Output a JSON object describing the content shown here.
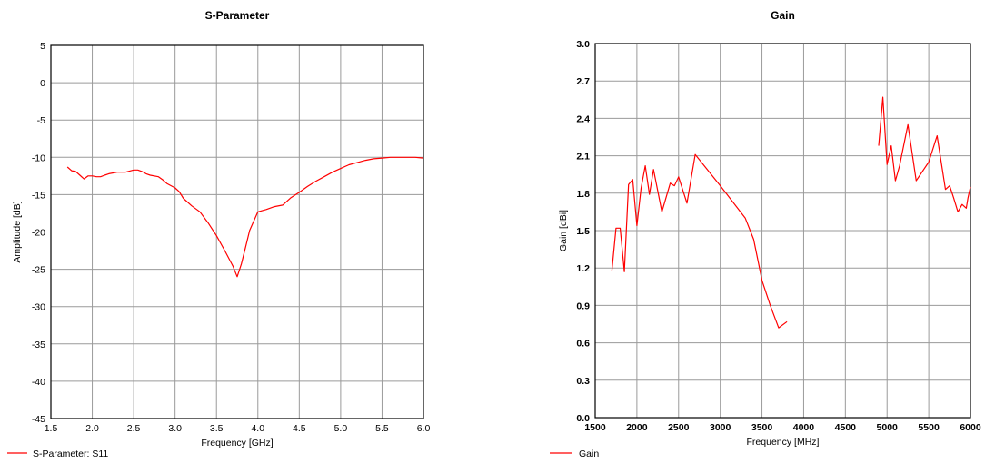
{
  "chart_data": [
    {
      "type": "line",
      "title": "S-Parameter",
      "xlabel": "Frequency [GHz]",
      "ylabel": "Amplitude [dB]",
      "xlim": [
        1.5,
        6.0
      ],
      "ylim": [
        -45,
        5
      ],
      "xticks": [
        "1.5",
        "2.0",
        "2.5",
        "3.0",
        "3.5",
        "4.0",
        "4.5",
        "5.0",
        "5.5",
        "6.0"
      ],
      "xtick_values": [
        1.5,
        2.0,
        2.5,
        3.0,
        3.5,
        4.0,
        4.5,
        5.0,
        5.5,
        6.0
      ],
      "yticks": [
        "5",
        "0",
        "-5",
        "-10",
        "-15",
        "-20",
        "-25",
        "-30",
        "-35",
        "-40",
        "-45"
      ],
      "ytick_values": [
        5,
        0,
        -5,
        -10,
        -15,
        -20,
        -25,
        -30,
        -35,
        -40,
        -45
      ],
      "grid": true,
      "legend_position": "bottom-left",
      "series": [
        {
          "name": "S-Parameter: S11",
          "color": "#ff0000",
          "x": [
            1.7,
            1.75,
            1.8,
            1.85,
            1.9,
            1.95,
            2.0,
            2.05,
            2.1,
            2.15,
            2.2,
            2.3,
            2.4,
            2.5,
            2.55,
            2.6,
            2.65,
            2.7,
            2.8,
            2.85,
            2.9,
            3.0,
            3.05,
            3.1,
            3.2,
            3.3,
            3.4,
            3.5,
            3.6,
            3.7,
            3.75,
            3.8,
            3.85,
            3.9,
            4.0,
            4.1,
            4.2,
            4.3,
            4.4,
            4.5,
            4.6,
            4.7,
            4.8,
            4.9,
            5.0,
            5.1,
            5.2,
            5.3,
            5.4,
            5.5,
            5.6,
            5.7,
            5.8,
            5.9,
            6.0
          ],
          "values": [
            -11.3,
            -11.8,
            -11.9,
            -12.4,
            -12.9,
            -12.5,
            -12.5,
            -12.6,
            -12.6,
            -12.4,
            -12.2,
            -12.0,
            -12.0,
            -11.7,
            -11.7,
            -11.9,
            -12.2,
            -12.4,
            -12.6,
            -13.0,
            -13.5,
            -14.1,
            -14.6,
            -15.5,
            -16.5,
            -17.3,
            -18.8,
            -20.5,
            -22.5,
            -24.6,
            -26.0,
            -24.3,
            -22.1,
            -19.8,
            -17.3,
            -17.0,
            -16.6,
            -16.4,
            -15.4,
            -14.7,
            -13.9,
            -13.2,
            -12.6,
            -12.0,
            -11.5,
            -11.0,
            -10.7,
            -10.4,
            -10.2,
            -10.1,
            -10.0,
            -10.0,
            -10.0,
            -10.0,
            -10.1
          ]
        }
      ]
    },
    {
      "type": "line",
      "title": "Gain",
      "xlabel": "Frequency [MHz]",
      "ylabel": "Gain [dBi]",
      "xlim": [
        1500,
        6000
      ],
      "ylim": [
        0.0,
        3.0
      ],
      "xticks": [
        "1500",
        "2000",
        "2500",
        "3000",
        "3500",
        "4000",
        "4500",
        "5000",
        "5500",
        "6000"
      ],
      "xtick_values": [
        1500,
        2000,
        2500,
        3000,
        3500,
        4000,
        4500,
        5000,
        5500,
        6000
      ],
      "yticks": [
        "3.0",
        "2.7",
        "2.4",
        "2.1",
        "1.8",
        "1.5",
        "1.2",
        "0.9",
        "0.6",
        "0.3",
        "0.0"
      ],
      "ytick_values": [
        3.0,
        2.7,
        2.4,
        2.1,
        1.8,
        1.5,
        1.2,
        0.9,
        0.6,
        0.3,
        0.0
      ],
      "grid": true,
      "legend_position": "bottom-left",
      "series": [
        {
          "name": "Gain",
          "color": "#ff0000",
          "segments": [
            {
              "x": [
                1700,
                1750,
                1800,
                1850,
                1900,
                1950,
                2000,
                2050,
                2100,
                2150,
                2200,
                2300,
                2400,
                2450,
                2500,
                2600,
                2700,
                3000,
                3300,
                3400,
                3500,
                3600,
                3700,
                3800
              ],
              "values": [
                1.18,
                1.52,
                1.52,
                1.17,
                1.87,
                1.91,
                1.54,
                1.84,
                2.02,
                1.79,
                1.99,
                1.65,
                1.88,
                1.86,
                1.93,
                1.72,
                2.11,
                1.86,
                1.6,
                1.43,
                1.1,
                0.9,
                0.72,
                0.77
              ]
            },
            {
              "x": [
                4900,
                4950,
                5000,
                5050,
                5100,
                5150,
                5250,
                5350,
                5500,
                5600,
                5700,
                5750,
                5800,
                5850,
                5900,
                5950,
                5970,
                6000
              ],
              "values": [
                2.18,
                2.57,
                2.03,
                2.18,
                1.9,
                2.02,
                2.35,
                1.9,
                2.05,
                2.26,
                1.83,
                1.86,
                1.76,
                1.65,
                1.71,
                1.68,
                1.76,
                1.85
              ]
            }
          ]
        }
      ]
    }
  ]
}
